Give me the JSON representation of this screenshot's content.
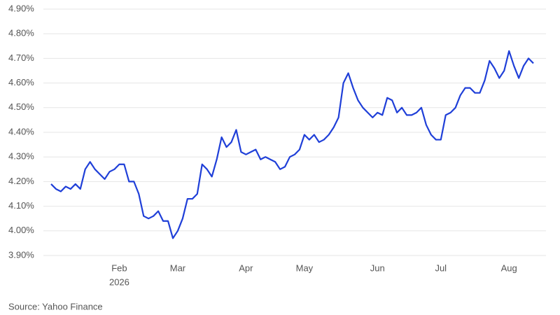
{
  "chart_data": {
    "type": "line",
    "source": "Source: Yahoo Finance",
    "categories": [
      null,
      null,
      null,
      null,
      null,
      null,
      null,
      null,
      null,
      null,
      null,
      null,
      null,
      null,
      "Feb",
      null,
      null,
      null,
      null,
      null,
      null,
      null,
      null,
      null,
      null,
      null,
      "Mar",
      null,
      null,
      null,
      null,
      null,
      null,
      null,
      null,
      null,
      null,
      null,
      null,
      null,
      "Apr",
      null,
      null,
      null,
      null,
      null,
      null,
      null,
      null,
      null,
      null,
      null,
      "May",
      null,
      null,
      null,
      null,
      null,
      null,
      null,
      null,
      null,
      null,
      null,
      null,
      null,
      null,
      "Jun",
      null,
      null,
      null,
      null,
      null,
      null,
      null,
      null,
      null,
      null,
      null,
      null,
      "Jul",
      null,
      null,
      null,
      null,
      null,
      null,
      null,
      null,
      null,
      null,
      null,
      null,
      null,
      "Aug",
      null,
      null,
      null,
      null,
      null
    ],
    "year": "2026",
    "color": "#1f3fd8",
    "values": [
      4.19,
      4.17,
      4.16,
      4.18,
      4.17,
      4.19,
      4.17,
      4.25,
      4.28,
      4.25,
      4.23,
      4.21,
      4.24,
      4.25,
      4.27,
      4.27,
      4.2,
      4.2,
      4.15,
      4.06,
      4.05,
      4.06,
      4.08,
      4.04,
      4.04,
      3.97,
      4.0,
      4.05,
      4.13,
      4.13,
      4.15,
      4.27,
      4.25,
      4.22,
      4.29,
      4.38,
      4.34,
      4.36,
      4.41,
      4.32,
      4.31,
      4.32,
      4.33,
      4.29,
      4.3,
      4.29,
      4.28,
      4.25,
      4.26,
      4.3,
      4.31,
      4.33,
      4.39,
      4.37,
      4.39,
      4.36,
      4.37,
      4.39,
      4.42,
      4.46,
      4.6,
      4.64,
      4.58,
      4.53,
      4.5,
      4.48,
      4.46,
      4.48,
      4.47,
      4.54,
      4.53,
      4.48,
      4.5,
      4.47,
      4.47,
      4.48,
      4.5,
      4.43,
      4.39,
      4.37,
      4.37,
      4.47,
      4.48,
      4.5,
      4.55,
      4.58,
      4.58,
      4.56,
      4.56,
      4.61,
      4.69,
      4.66,
      4.62,
      4.65,
      4.73,
      4.67,
      4.62,
      4.67,
      4.7,
      4.68
    ],
    "ylim": [
      3.9,
      4.9
    ],
    "yticks": [
      {
        "value": 3.9,
        "label": "3.90%"
      },
      {
        "value": 4.0,
        "label": "4.00%"
      },
      {
        "value": 4.1,
        "label": "4.10%"
      },
      {
        "value": 4.2,
        "label": "4.20%"
      },
      {
        "value": 4.3,
        "label": "4.30%"
      },
      {
        "value": 4.4,
        "label": "4.40%"
      },
      {
        "value": 4.5,
        "label": "4.50%"
      },
      {
        "value": 4.6,
        "label": "4.60%"
      },
      {
        "value": 4.7,
        "label": "4.70%"
      },
      {
        "value": 4.8,
        "label": "4.80%"
      },
      {
        "value": 4.9,
        "label": "4.90%"
      }
    ],
    "grid": true
  }
}
